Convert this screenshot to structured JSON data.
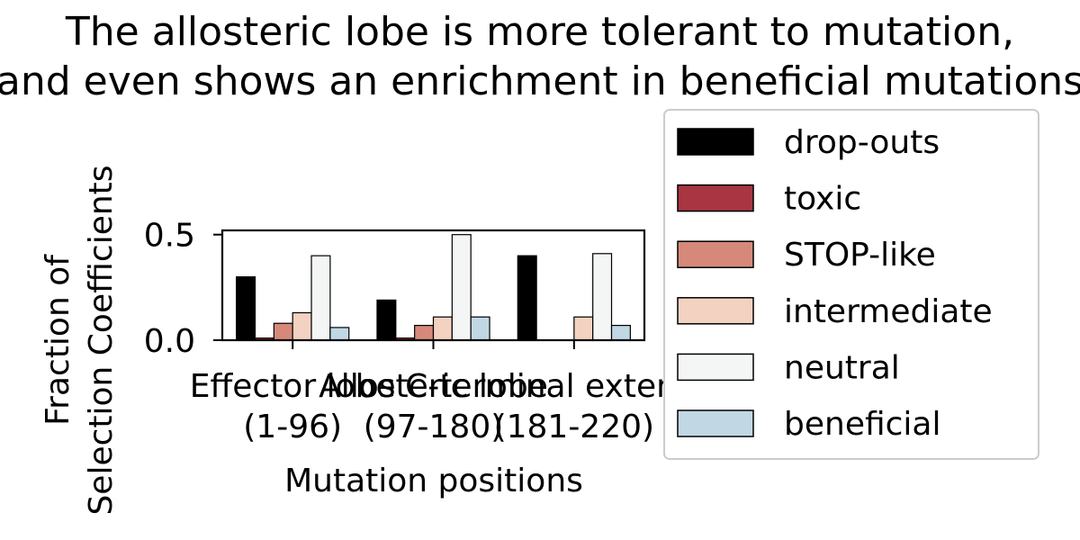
{
  "chart_data": {
    "type": "bar",
    "title_lines": [
      "The allosteric lobe is more tolerant to mutation,",
      "and even shows an enrichment in beneficial mutations"
    ],
    "xlabel": "Mutation positions",
    "ylabel_lines": [
      "Fraction of",
      "Selection Coefficients"
    ],
    "categories": [
      {
        "name": "Effector lobe",
        "range": "(1-96)"
      },
      {
        "name": "Allosteric lobe",
        "range": "(97-180)"
      },
      {
        "name": "C-terminal extension",
        "range": "(181-220)"
      }
    ],
    "series": [
      {
        "name": "drop-outs",
        "color": "#000000",
        "values": [
          0.3,
          0.19,
          0.4
        ]
      },
      {
        "name": "toxic",
        "color": "#a83541",
        "values": [
          0.01,
          0.01,
          0.0
        ]
      },
      {
        "name": "STOP-like",
        "color": "#d6897a",
        "values": [
          0.08,
          0.07,
          0.0
        ]
      },
      {
        "name": "intermediate",
        "color": "#f3d2c1",
        "values": [
          0.13,
          0.11,
          0.11
        ]
      },
      {
        "name": "neutral",
        "color": "#f4f5f5",
        "values": [
          0.4,
          0.5,
          0.41
        ]
      },
      {
        "name": "beneficial",
        "color": "#c1d8e4",
        "values": [
          0.06,
          0.11,
          0.07
        ]
      }
    ],
    "ylim": [
      0,
      0.52
    ],
    "yticks": [
      {
        "value": 0.0,
        "label": "0.0"
      },
      {
        "value": 0.5,
        "label": "0.5"
      }
    ],
    "grid": false,
    "legend_position": "right"
  }
}
